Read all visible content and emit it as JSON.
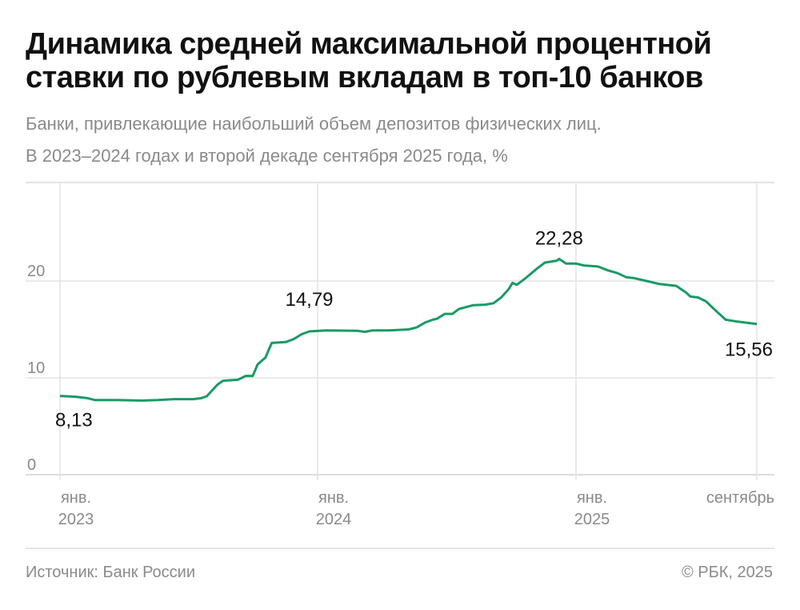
{
  "title_line1": "Динамика средней максимальной процентной",
  "title_line2": "ставки по рублевым вкладам в топ-10 банков",
  "subtitle_line1": "Банки, привлекающие наибольший объем депозитов физических лиц.",
  "subtitle_line2": "В 2023–2024 годах и второй декаде сентября 2025 года, %",
  "source": "Источник: Банк России",
  "copyright": "© РБК, 2025",
  "colors": {
    "line": "#1a9a64",
    "grid": "#e3e3e3",
    "text": "#111111",
    "muted": "#8a8a8a"
  },
  "chart_data": {
    "type": "line",
    "ylim": [
      0,
      28
    ],
    "yticks": [
      "0",
      "10",
      "20"
    ],
    "ytick_values": [
      0,
      10,
      20
    ],
    "xticks": [
      {
        "date": "2023-01-01",
        "line1": "янв.",
        "line2": "2023"
      },
      {
        "date": "2024-01-01",
        "line1": "янв.",
        "line2": "2024"
      },
      {
        "date": "2025-01-01",
        "line1": "янв.",
        "line2": "2025"
      },
      {
        "date": "2025-09-20",
        "line1": "сентябрь",
        "line2": ""
      }
    ],
    "grid": true,
    "annotations": [
      {
        "date": "2023-01-01",
        "value": 8.13,
        "label": "8,13"
      },
      {
        "date": "2023-12-20",
        "value": 14.79,
        "label": "14,79"
      },
      {
        "date": "2024-12-08",
        "value": 22.28,
        "label": "22,28"
      },
      {
        "date": "2025-09-20",
        "value": 15.56,
        "label": "15,56"
      }
    ],
    "points": [
      [
        "2023-01-01",
        8.13
      ],
      [
        "2023-01-23",
        8.05
      ],
      [
        "2023-02-09",
        7.9
      ],
      [
        "2023-02-20",
        7.7
      ],
      [
        "2023-03-24",
        7.7
      ],
      [
        "2023-04-27",
        7.65
      ],
      [
        "2023-05-19",
        7.7
      ],
      [
        "2023-06-11",
        7.8
      ],
      [
        "2023-07-09",
        7.8
      ],
      [
        "2023-07-20",
        7.9
      ],
      [
        "2023-07-28",
        8.1
      ],
      [
        "2023-08-12",
        9.3
      ],
      [
        "2023-08-20",
        9.7
      ],
      [
        "2023-09-10",
        9.8
      ],
      [
        "2023-09-21",
        10.2
      ],
      [
        "2023-10-01",
        10.2
      ],
      [
        "2023-10-08",
        11.4
      ],
      [
        "2023-10-19",
        12.1
      ],
      [
        "2023-10-28",
        13.6
      ],
      [
        "2023-11-17",
        13.7
      ],
      [
        "2023-11-28",
        14.0
      ],
      [
        "2023-12-09",
        14.5
      ],
      [
        "2023-12-20",
        14.79
      ],
      [
        "2024-01-13",
        14.9
      ],
      [
        "2024-02-27",
        14.85
      ],
      [
        "2024-03-08",
        14.75
      ],
      [
        "2024-03-19",
        14.9
      ],
      [
        "2024-04-11",
        14.9
      ],
      [
        "2024-05-09",
        15.0
      ],
      [
        "2024-05-20",
        15.2
      ],
      [
        "2024-06-01",
        15.7
      ],
      [
        "2024-06-12",
        16.0
      ],
      [
        "2024-06-18",
        16.1
      ],
      [
        "2024-06-29",
        16.6
      ],
      [
        "2024-07-10",
        16.6
      ],
      [
        "2024-07-19",
        17.1
      ],
      [
        "2024-08-08",
        17.5
      ],
      [
        "2024-08-25",
        17.55
      ],
      [
        "2024-09-06",
        17.7
      ],
      [
        "2024-09-17",
        18.3
      ],
      [
        "2024-09-28",
        19.2
      ],
      [
        "2024-10-03",
        19.8
      ],
      [
        "2024-10-09",
        19.6
      ],
      [
        "2024-10-20",
        20.2
      ],
      [
        "2024-11-07",
        21.3
      ],
      [
        "2024-11-18",
        21.9
      ],
      [
        "2024-12-05",
        22.1
      ],
      [
        "2024-12-08",
        22.28
      ],
      [
        "2024-12-18",
        21.8
      ],
      [
        "2025-01-01",
        21.8
      ],
      [
        "2025-01-12",
        21.6
      ],
      [
        "2025-02-01",
        21.5
      ],
      [
        "2025-02-15",
        21.1
      ],
      [
        "2025-03-01",
        20.8
      ],
      [
        "2025-03-13",
        20.4
      ],
      [
        "2025-03-24",
        20.3
      ],
      [
        "2025-04-11",
        20.0
      ],
      [
        "2025-04-28",
        19.7
      ],
      [
        "2025-05-23",
        19.5
      ],
      [
        "2025-06-06",
        18.8
      ],
      [
        "2025-06-12",
        18.4
      ],
      [
        "2025-06-23",
        18.3
      ],
      [
        "2025-07-04",
        17.9
      ],
      [
        "2025-07-20",
        16.8
      ],
      [
        "2025-08-01",
        16.0
      ],
      [
        "2025-08-18",
        15.8
      ],
      [
        "2025-09-20",
        15.56
      ]
    ]
  }
}
